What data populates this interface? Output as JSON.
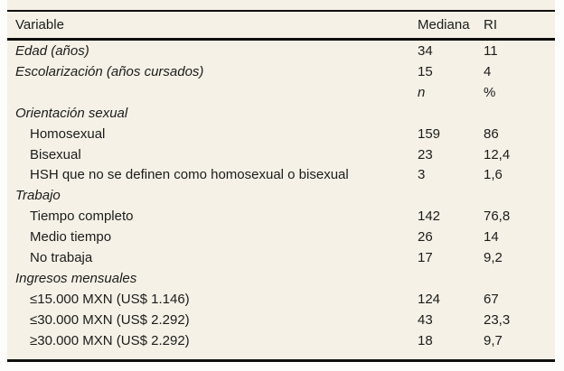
{
  "colors": {
    "table_background": "#f5f1e6",
    "page_background": "#fdfdfc",
    "rule_color": "#0f0f0f",
    "text_color": "#1c1c1c"
  },
  "table": {
    "header": {
      "variable": "Variable",
      "mediana": "Mediana",
      "ri": "RI"
    },
    "rows": [
      {
        "label": "Edad (años)",
        "mediana": "34",
        "ri": "11"
      },
      {
        "label": "Escolarización (años cursados)",
        "mediana": "15",
        "ri": "4"
      },
      {
        "label": "",
        "mediana": "n",
        "ri": "%"
      },
      {
        "label": "Orientación sexual",
        "mediana": "",
        "ri": ""
      },
      {
        "label": "Homosexual",
        "mediana": "159",
        "ri": "86"
      },
      {
        "label": "Bisexual",
        "mediana": "23",
        "ri": "12,4"
      },
      {
        "label": "HSH que no se definen como homosexual o bisexual",
        "mediana": "3",
        "ri": "1,6"
      },
      {
        "label": "Trabajo",
        "mediana": "",
        "ri": ""
      },
      {
        "label": "Tiempo completo",
        "mediana": "142",
        "ri": "76,8"
      },
      {
        "label": "Medio tiempo",
        "mediana": "26",
        "ri": "14"
      },
      {
        "label": "No trabaja",
        "mediana": "17",
        "ri": "9,2"
      },
      {
        "label": "Ingresos mensuales",
        "mediana": "",
        "ri": ""
      },
      {
        "label": "≤15.000 MXN (US$ 1.146)",
        "mediana": "124",
        "ri": "67"
      },
      {
        "label": "≤30.000 MXN (US$ 2.292)",
        "mediana": "43",
        "ri": "23,3"
      },
      {
        "label": "≥30.000 MXN (US$ 2.292)",
        "mediana": "18",
        "ri": "9,7"
      }
    ]
  }
}
